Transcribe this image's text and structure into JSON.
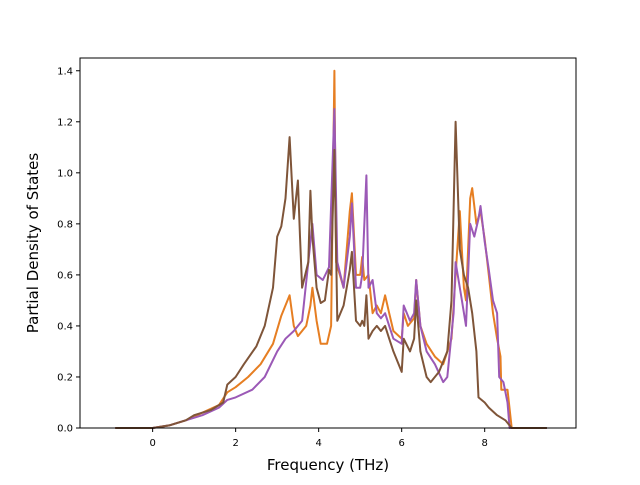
{
  "chart_data": {
    "type": "line",
    "xlabel": "Frequency (THz)",
    "ylabel": "Partial Density of States",
    "xlim": [
      -1.75,
      10.2
    ],
    "ylim": [
      0.0,
      1.45
    ],
    "xticks": [
      0,
      2,
      4,
      6,
      8
    ],
    "yticks": [
      0.0,
      0.2,
      0.4,
      0.6,
      0.8,
      1.0,
      1.2,
      1.4
    ],
    "xtick_labels": [
      "0",
      "2",
      "4",
      "6",
      "8"
    ],
    "ytick_labels": [
      "0.0",
      "0.2",
      "0.4",
      "0.6",
      "0.8",
      "1.0",
      "1.2",
      "1.4"
    ],
    "grid": false,
    "legend": "none",
    "series": [
      {
        "color": "#e67e22",
        "points": [
          [
            -0.9,
            0.0
          ],
          [
            0.0,
            0.0
          ],
          [
            0.4,
            0.01
          ],
          [
            0.8,
            0.03
          ],
          [
            1.2,
            0.06
          ],
          [
            1.6,
            0.09
          ],
          [
            1.8,
            0.14
          ],
          [
            2.0,
            0.16
          ],
          [
            2.3,
            0.2
          ],
          [
            2.6,
            0.25
          ],
          [
            2.9,
            0.33
          ],
          [
            3.1,
            0.44
          ],
          [
            3.3,
            0.52
          ],
          [
            3.4,
            0.4
          ],
          [
            3.5,
            0.36
          ],
          [
            3.7,
            0.4
          ],
          [
            3.8,
            0.48
          ],
          [
            3.85,
            0.55
          ],
          [
            3.95,
            0.42
          ],
          [
            4.05,
            0.33
          ],
          [
            4.2,
            0.33
          ],
          [
            4.3,
            0.4
          ],
          [
            4.38,
            1.4
          ],
          [
            4.42,
            0.65
          ],
          [
            4.6,
            0.55
          ],
          [
            4.75,
            0.85
          ],
          [
            4.8,
            0.92
          ],
          [
            4.9,
            0.6
          ],
          [
            5.0,
            0.6
          ],
          [
            5.05,
            0.67
          ],
          [
            5.1,
            0.58
          ],
          [
            5.2,
            0.6
          ],
          [
            5.3,
            0.45
          ],
          [
            5.4,
            0.48
          ],
          [
            5.5,
            0.45
          ],
          [
            5.6,
            0.52
          ],
          [
            5.7,
            0.45
          ],
          [
            5.8,
            0.38
          ],
          [
            6.0,
            0.35
          ],
          [
            6.05,
            0.45
          ],
          [
            6.15,
            0.4
          ],
          [
            6.3,
            0.43
          ],
          [
            6.35,
            0.58
          ],
          [
            6.45,
            0.4
          ],
          [
            6.6,
            0.33
          ],
          [
            6.8,
            0.28
          ],
          [
            7.0,
            0.25
          ],
          [
            7.2,
            0.35
          ],
          [
            7.3,
            0.6
          ],
          [
            7.4,
            0.85
          ],
          [
            7.5,
            0.55
          ],
          [
            7.55,
            0.5
          ],
          [
            7.65,
            0.9
          ],
          [
            7.7,
            0.94
          ],
          [
            7.8,
            0.8
          ],
          [
            7.9,
            0.85
          ],
          [
            8.0,
            0.74
          ],
          [
            8.1,
            0.6
          ],
          [
            8.2,
            0.45
          ],
          [
            8.3,
            0.35
          ],
          [
            8.38,
            0.28
          ],
          [
            8.4,
            0.15
          ],
          [
            8.55,
            0.15
          ],
          [
            8.65,
            0.0
          ],
          [
            9.5,
            0.0
          ]
        ]
      },
      {
        "color": "#9b59b6",
        "points": [
          [
            -0.9,
            0.0
          ],
          [
            0.0,
            0.0
          ],
          [
            0.4,
            0.01
          ],
          [
            0.8,
            0.03
          ],
          [
            1.2,
            0.05
          ],
          [
            1.6,
            0.08
          ],
          [
            1.8,
            0.11
          ],
          [
            2.0,
            0.12
          ],
          [
            2.4,
            0.15
          ],
          [
            2.7,
            0.2
          ],
          [
            3.0,
            0.3
          ],
          [
            3.2,
            0.35
          ],
          [
            3.4,
            0.38
          ],
          [
            3.6,
            0.42
          ],
          [
            3.75,
            0.65
          ],
          [
            3.85,
            0.8
          ],
          [
            3.95,
            0.6
          ],
          [
            4.1,
            0.58
          ],
          [
            4.25,
            0.63
          ],
          [
            4.38,
            1.25
          ],
          [
            4.45,
            0.65
          ],
          [
            4.6,
            0.55
          ],
          [
            4.75,
            0.75
          ],
          [
            4.8,
            0.88
          ],
          [
            4.9,
            0.55
          ],
          [
            5.0,
            0.55
          ],
          [
            5.05,
            0.6
          ],
          [
            5.15,
            0.99
          ],
          [
            5.2,
            0.55
          ],
          [
            5.3,
            0.58
          ],
          [
            5.4,
            0.45
          ],
          [
            5.5,
            0.43
          ],
          [
            5.6,
            0.45
          ],
          [
            5.7,
            0.4
          ],
          [
            5.8,
            0.35
          ],
          [
            6.0,
            0.33
          ],
          [
            6.05,
            0.48
          ],
          [
            6.2,
            0.42
          ],
          [
            6.3,
            0.45
          ],
          [
            6.35,
            0.58
          ],
          [
            6.45,
            0.4
          ],
          [
            6.6,
            0.3
          ],
          [
            6.8,
            0.25
          ],
          [
            7.0,
            0.18
          ],
          [
            7.1,
            0.2
          ],
          [
            7.25,
            0.45
          ],
          [
            7.3,
            0.65
          ],
          [
            7.45,
            0.5
          ],
          [
            7.55,
            0.4
          ],
          [
            7.65,
            0.8
          ],
          [
            7.75,
            0.75
          ],
          [
            7.85,
            0.82
          ],
          [
            7.9,
            0.87
          ],
          [
            8.0,
            0.73
          ],
          [
            8.1,
            0.62
          ],
          [
            8.2,
            0.5
          ],
          [
            8.3,
            0.45
          ],
          [
            8.35,
            0.2
          ],
          [
            8.45,
            0.18
          ],
          [
            8.55,
            0.1
          ],
          [
            8.6,
            0.0
          ],
          [
            9.5,
            0.0
          ]
        ]
      },
      {
        "color": "#7f5539",
        "points": [
          [
            -0.9,
            0.0
          ],
          [
            0.0,
            0.0
          ],
          [
            0.4,
            0.01
          ],
          [
            0.8,
            0.03
          ],
          [
            1.0,
            0.05
          ],
          [
            1.4,
            0.07
          ],
          [
            1.7,
            0.1
          ],
          [
            1.8,
            0.17
          ],
          [
            2.0,
            0.2
          ],
          [
            2.2,
            0.25
          ],
          [
            2.5,
            0.32
          ],
          [
            2.7,
            0.4
          ],
          [
            2.9,
            0.55
          ],
          [
            3.0,
            0.75
          ],
          [
            3.1,
            0.79
          ],
          [
            3.2,
            0.9
          ],
          [
            3.3,
            1.14
          ],
          [
            3.4,
            0.82
          ],
          [
            3.5,
            0.97
          ],
          [
            3.55,
            0.75
          ],
          [
            3.6,
            0.55
          ],
          [
            3.75,
            0.65
          ],
          [
            3.8,
            0.93
          ],
          [
            3.85,
            0.75
          ],
          [
            3.95,
            0.55
          ],
          [
            4.05,
            0.49
          ],
          [
            4.15,
            0.5
          ],
          [
            4.25,
            0.62
          ],
          [
            4.3,
            0.6
          ],
          [
            4.38,
            1.09
          ],
          [
            4.45,
            0.42
          ],
          [
            4.6,
            0.48
          ],
          [
            4.75,
            0.62
          ],
          [
            4.8,
            0.69
          ],
          [
            4.9,
            0.42
          ],
          [
            5.0,
            0.4
          ],
          [
            5.05,
            0.42
          ],
          [
            5.1,
            0.4
          ],
          [
            5.15,
            0.52
          ],
          [
            5.2,
            0.35
          ],
          [
            5.3,
            0.38
          ],
          [
            5.4,
            0.4
          ],
          [
            5.5,
            0.38
          ],
          [
            5.6,
            0.4
          ],
          [
            5.7,
            0.35
          ],
          [
            5.8,
            0.3
          ],
          [
            6.0,
            0.22
          ],
          [
            6.05,
            0.35
          ],
          [
            6.2,
            0.3
          ],
          [
            6.3,
            0.35
          ],
          [
            6.35,
            0.5
          ],
          [
            6.45,
            0.3
          ],
          [
            6.6,
            0.2
          ],
          [
            6.7,
            0.18
          ],
          [
            6.9,
            0.22
          ],
          [
            7.1,
            0.3
          ],
          [
            7.2,
            0.5
          ],
          [
            7.3,
            1.2
          ],
          [
            7.4,
            0.7
          ],
          [
            7.5,
            0.6
          ],
          [
            7.6,
            0.55
          ],
          [
            7.7,
            0.45
          ],
          [
            7.8,
            0.3
          ],
          [
            7.85,
            0.12
          ],
          [
            8.0,
            0.1
          ],
          [
            8.1,
            0.08
          ],
          [
            8.3,
            0.05
          ],
          [
            8.5,
            0.03
          ],
          [
            8.65,
            0.0
          ],
          [
            9.5,
            0.0
          ]
        ]
      }
    ]
  }
}
